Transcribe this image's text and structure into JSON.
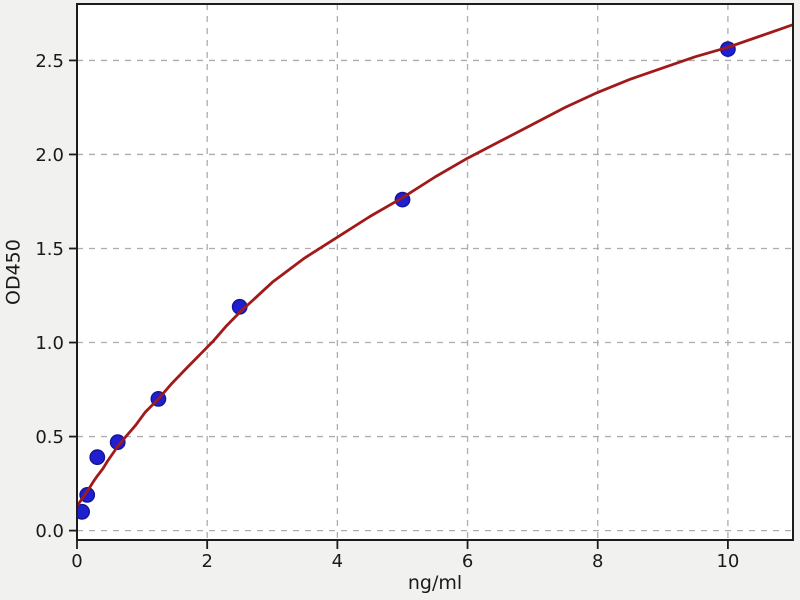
{
  "figure": {
    "background_color": "#f1f1ef",
    "plot_background_color": "#ffffff",
    "spine_color": "#1c1c1c",
    "grid_color": "#adadad",
    "tick_color": "#1c1c1c",
    "text_color": "#1a1a1a"
  },
  "chart_data": {
    "type": "scatter",
    "description": "Standard curve: OD450 versus concentration in ng/ml with fitted line",
    "title": "",
    "xlabel": "ng/ml",
    "ylabel": "OD450",
    "xlim": [
      0,
      11
    ],
    "ylim": [
      -0.05,
      2.8
    ],
    "x_ticks": [
      0,
      2,
      4,
      6,
      8,
      10
    ],
    "y_ticks": [
      0.0,
      0.5,
      1.0,
      1.5,
      2.0,
      2.5
    ],
    "y_tick_decimals": 1,
    "grid": true,
    "grid_style": "dashed",
    "legend": null,
    "series": [
      {
        "name": "standard-points",
        "type": "scatter",
        "color": "#1f1fd0",
        "edge_color": "#14149a",
        "marker_radius": 7.2,
        "x": [
          0.078,
          0.156,
          0.3125,
          0.625,
          1.25,
          2.5,
          5,
          10
        ],
        "y": [
          0.1,
          0.19,
          0.39,
          0.47,
          0.7,
          1.19,
          1.76,
          2.56
        ]
      },
      {
        "name": "fit-curve",
        "type": "line",
        "color": "#a11a1a",
        "line_width": 2.8,
        "x": [
          0,
          0.08,
          0.16,
          0.25,
          0.31,
          0.4,
          0.47,
          0.55,
          0.63,
          0.75,
          0.9,
          1.05,
          1.25,
          1.45,
          1.7,
          1.9,
          2.1,
          2.3,
          2.5,
          3.0,
          3.5,
          4.0,
          4.5,
          5.0,
          5.5,
          6.0,
          6.5,
          7.0,
          7.5,
          8.0,
          8.5,
          9.0,
          9.5,
          10.0,
          10.5,
          11.0
        ],
        "y": [
          0.13,
          0.17,
          0.21,
          0.26,
          0.29,
          0.33,
          0.37,
          0.41,
          0.45,
          0.5,
          0.56,
          0.63,
          0.7,
          0.78,
          0.87,
          0.94,
          1.01,
          1.09,
          1.16,
          1.32,
          1.45,
          1.56,
          1.67,
          1.77,
          1.88,
          1.98,
          2.07,
          2.16,
          2.25,
          2.33,
          2.4,
          2.46,
          2.52,
          2.57,
          2.63,
          2.69
        ]
      }
    ]
  }
}
